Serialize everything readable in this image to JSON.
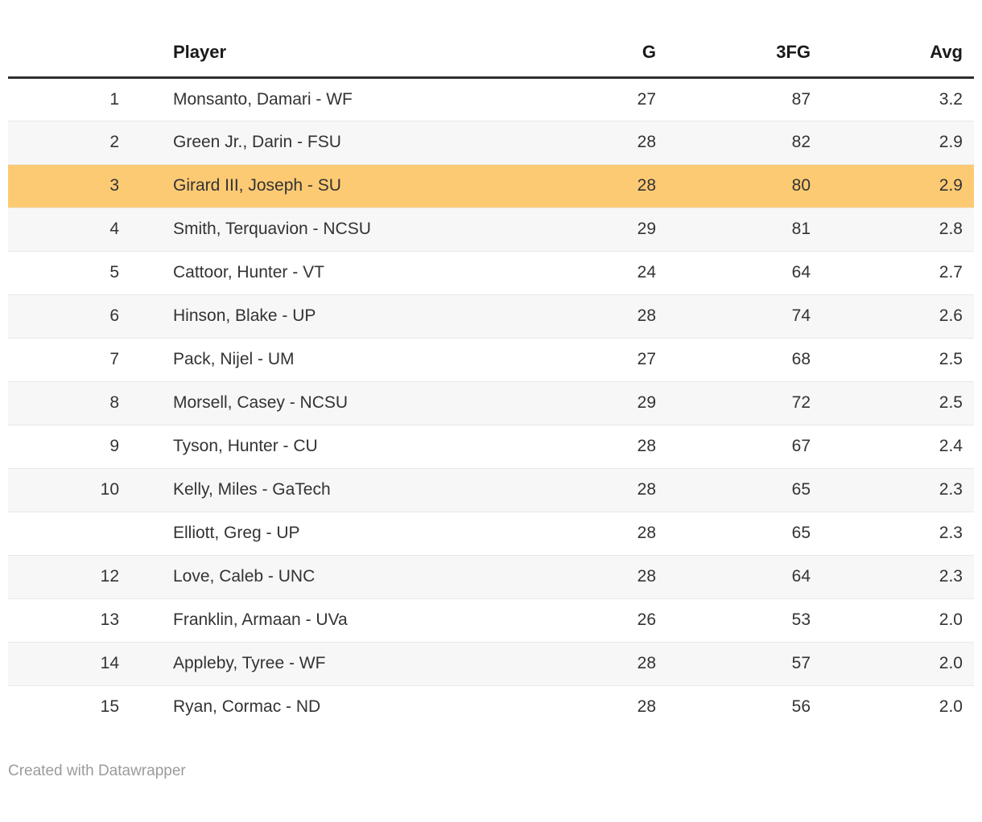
{
  "chart_data": {
    "type": "table",
    "title": "",
    "columns": [
      "",
      "Player",
      "G",
      "3FG",
      "Avg"
    ],
    "rows": [
      [
        "1",
        "Monsanto, Damari - WF",
        "27",
        "87",
        "3.2"
      ],
      [
        "2",
        "Green Jr., Darin - FSU",
        "28",
        "82",
        "2.9"
      ],
      [
        "3",
        "Girard III, Joseph - SU",
        "28",
        "80",
        "2.9"
      ],
      [
        "4",
        "Smith, Terquavion - NCSU",
        "29",
        "81",
        "2.8"
      ],
      [
        "5",
        "Cattoor, Hunter - VT",
        "24",
        "64",
        "2.7"
      ],
      [
        "6",
        "Hinson, Blake - UP",
        "28",
        "74",
        "2.6"
      ],
      [
        "7",
        "Pack, Nijel - UM",
        "27",
        "68",
        "2.5"
      ],
      [
        "8",
        "Morsell, Casey - NCSU",
        "29",
        "72",
        "2.5"
      ],
      [
        "9",
        "Tyson, Hunter - CU",
        "28",
        "67",
        "2.4"
      ],
      [
        "10",
        "Kelly, Miles - GaTech",
        "28",
        "65",
        "2.3"
      ],
      [
        "",
        "Elliott, Greg - UP",
        "28",
        "65",
        "2.3"
      ],
      [
        "12",
        "Love, Caleb - UNC",
        "28",
        "64",
        "2.3"
      ],
      [
        "13",
        "Franklin, Armaan - UVa",
        "26",
        "53",
        "2.0"
      ],
      [
        "14",
        "Appleby, Tyree - WF",
        "28",
        "57",
        "2.0"
      ],
      [
        "15",
        "Ryan, Cormac - ND",
        "28",
        "56",
        "2.0"
      ]
    ],
    "highlighted_row_index": 2,
    "highlighted_player": "Girard III, Joseph - SU",
    "layout_hints": {
      "zebra_striping": true,
      "rank_column_blank_on_tie": true
    }
  },
  "colors": {
    "highlight_row": "#fdca74",
    "stripe_row": "#f7f7f7",
    "header_rule": "#2e2e2e",
    "row_divider": "#e8e8e8",
    "body_text": "#333333",
    "header_text": "#1a1a1a",
    "footer_text": "#9b9b9b"
  },
  "footer": {
    "attribution": "Created with Datawrapper"
  }
}
